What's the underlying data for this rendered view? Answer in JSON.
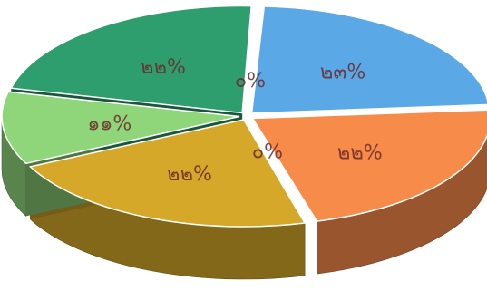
{
  "chart_data": {
    "type": "pie",
    "style": "3d-exploded",
    "legend": "none",
    "slices": [
      {
        "label": "๒๓%",
        "value": 23,
        "color": "#5aa9e6"
      },
      {
        "label": "๒๒%",
        "value": 22,
        "color": "#f78b4a"
      },
      {
        "label": "๐%",
        "value": 0,
        "color": "#d9534f"
      },
      {
        "label": "๒๒%",
        "value": 22,
        "color": "#d5a82a"
      },
      {
        "label": "๑๑%",
        "value": 11,
        "color": "#8fd67a"
      },
      {
        "label": "๒๒%",
        "value": 22,
        "color": "#2f9e6f"
      },
      {
        "label": "๐%",
        "value": 0,
        "color": "#ffffff"
      }
    ]
  }
}
